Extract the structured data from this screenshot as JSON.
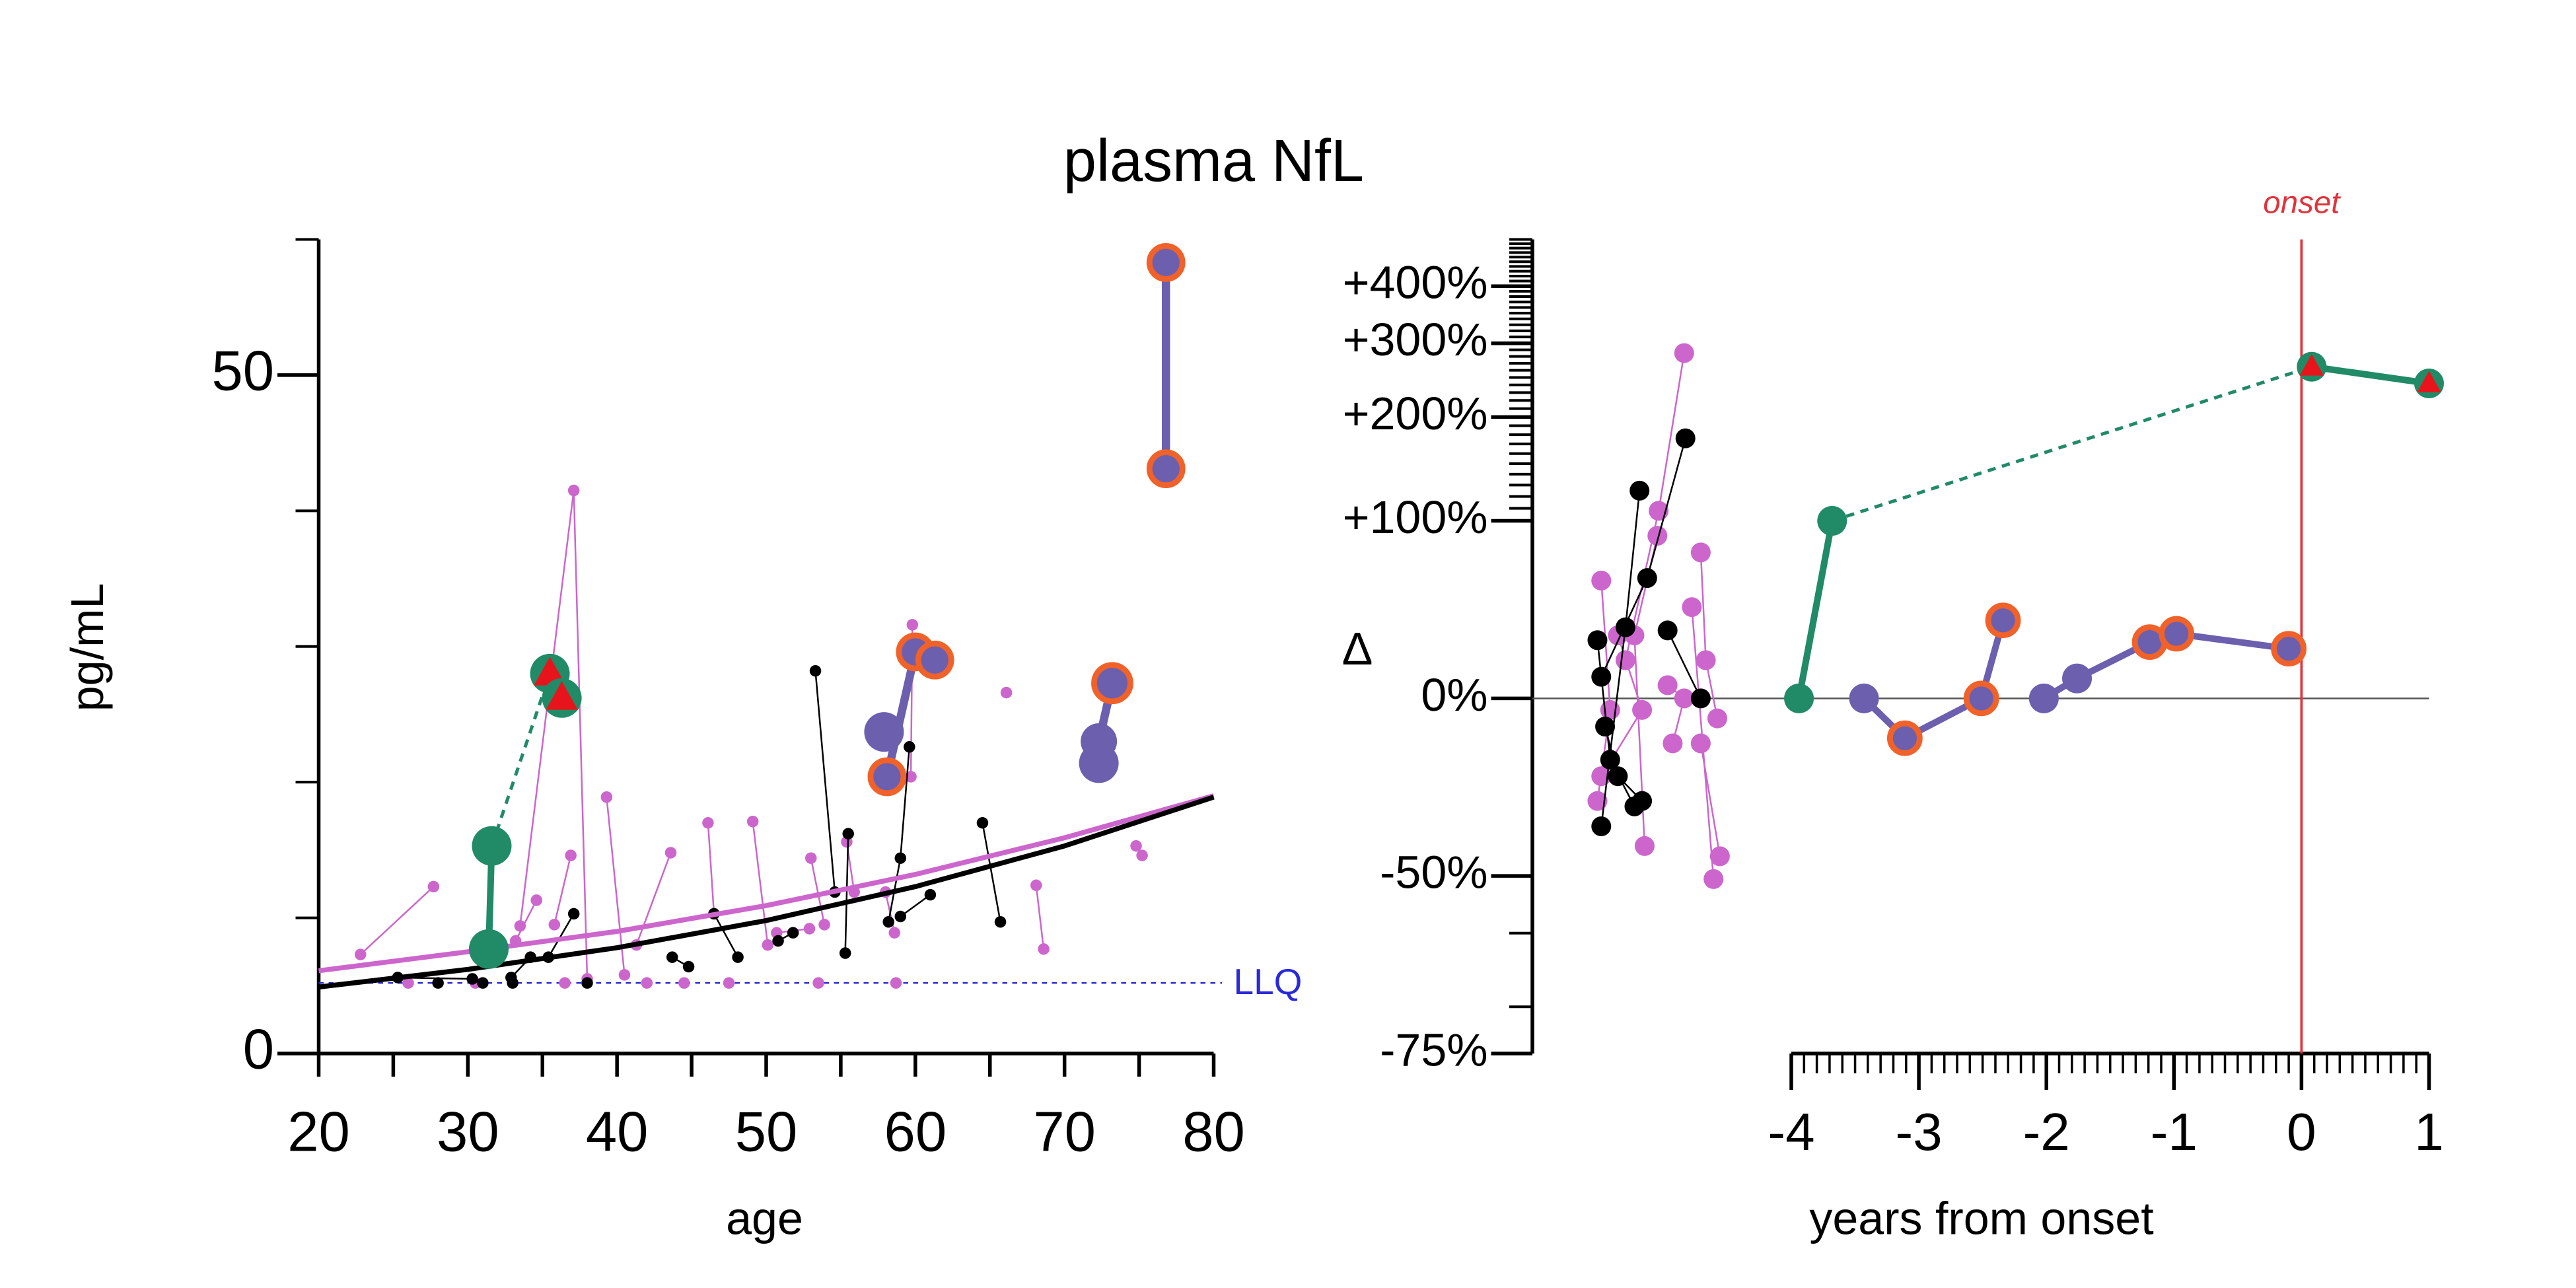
{
  "chart_data": [
    {
      "type": "line",
      "title": "plasma NfL",
      "xlabel": "age",
      "ylabel": "pg/mL",
      "xlim": [
        20,
        80
      ],
      "ylim": [
        0,
        60
      ],
      "xticks": [
        20,
        30,
        40,
        50,
        60,
        70,
        80
      ],
      "xminorticks": [
        25,
        35,
        45,
        55,
        65,
        75
      ],
      "yticks": [
        0,
        50
      ],
      "yminorticks": [
        10,
        20,
        30,
        40,
        60
      ],
      "hline": {
        "value": 5.2,
        "label": "LLQ",
        "color": "#2a2ad8"
      },
      "series": [
        {
          "color": "#cc66cc",
          "x": [
            33.5,
            37.1,
            38.0
          ],
          "values": [
            9.4,
            41.5,
            5.5
          ],
          "size": 3.5,
          "width": 1
        },
        {
          "color": "#cc66cc",
          "x": [
            22.8,
            27.7
          ],
          "values": [
            7.3,
            12.3
          ],
          "size": 3.5,
          "width": 1
        },
        {
          "color": "#cc66cc",
          "x": [
            39.3,
            40.5
          ],
          "values": [
            18.9,
            5.8
          ],
          "size": 3.5,
          "width": 1
        },
        {
          "color": "#cc66cc",
          "x": [
            43.6,
            41.3
          ],
          "values": [
            14.8,
            8.0
          ],
          "size": 3.5,
          "width": 1
        },
        {
          "color": "#cc66cc",
          "x": [
            46.1,
            46.5
          ],
          "values": [
            17.0,
            10.3
          ],
          "size": 3.5,
          "width": 1
        },
        {
          "color": "#cc66cc",
          "x": [
            49.1,
            50.1
          ],
          "values": [
            17.1,
            8.0
          ],
          "size": 3.5,
          "width": 1
        },
        {
          "color": "#cc66cc",
          "x": [
            59.8,
            59.7
          ],
          "values": [
            31.6,
            20.4
          ],
          "size": 3.5,
          "width": 1
        },
        {
          "color": "#cc66cc",
          "x": [
            66.1
          ],
          "values": [
            26.6
          ],
          "size": 3.5,
          "width": 1
        },
        {
          "color": "#cc66cc",
          "x": [
            68.1,
            68.6
          ],
          "values": [
            12.4,
            7.7
          ],
          "size": 3.5,
          "width": 1
        },
        {
          "color": "#cc66cc",
          "x": [
            74.8,
            75.2
          ],
          "values": [
            15.3,
            14.6
          ],
          "size": 3.5,
          "width": 1
        },
        {
          "color": "#cc66cc",
          "x": [
            36.9,
            35.8
          ],
          "values": [
            14.6,
            9.5
          ],
          "size": 3.5,
          "width": 1
        },
        {
          "color": "#cc66cc",
          "x": [
            34.6,
            33.2
          ],
          "values": [
            11.3,
            8.3
          ],
          "size": 3.5,
          "width": 1
        },
        {
          "color": "#cc66cc",
          "x": [
            53.0,
            53.9
          ],
          "values": [
            14.4,
            9.5
          ],
          "size": 3.5,
          "width": 1
        },
        {
          "color": "#cc66cc",
          "x": [
            55.4,
            55.9
          ],
          "values": [
            15.6,
            11.9
          ],
          "size": 3.5,
          "width": 1
        },
        {
          "color": "#cc66cc",
          "x": [
            58.0,
            58.6
          ],
          "values": [
            11.9,
            8.9
          ],
          "size": 3.5,
          "width": 1
        },
        {
          "color": "#cc66cc",
          "x": [
            50.7,
            52.9
          ],
          "values": [
            8.9,
            9.2
          ],
          "size": 3.5,
          "width": 1
        },
        {
          "color": "#cc66cc",
          "x": [
            26.0,
            30.5,
            36.5,
            42.0,
            44.5,
            47.5,
            53.5,
            58.7
          ],
          "values": [
            5.2,
            5.2,
            5.2,
            5.2,
            5.2,
            5.2,
            5.2,
            5.2
          ],
          "size": 3.5,
          "line": false
        },
        {
          "color": "#000000",
          "x": [
            53.3,
            54.6
          ],
          "values": [
            28.2,
            11.9
          ],
          "size": 3.5,
          "width": 1
        },
        {
          "color": "#000000",
          "x": [
            59.6,
            59.0,
            58.2
          ],
          "values": [
            22.6,
            14.4,
            9.7
          ],
          "size": 3.5,
          "width": 1
        },
        {
          "color": "#000000",
          "x": [
            64.5,
            65.7
          ],
          "values": [
            17.0,
            9.7
          ],
          "size": 3.5,
          "width": 1
        },
        {
          "color": "#000000",
          "x": [
            55.5,
            55.3
          ],
          "values": [
            16.2,
            7.4
          ],
          "size": 3.5,
          "width": 1
        },
        {
          "color": "#000000",
          "x": [
            46.5,
            48.1
          ],
          "values": [
            10.3,
            7.1
          ],
          "size": 3.5,
          "width": 1
        },
        {
          "color": "#000000",
          "x": [
            37.1,
            35.4
          ],
          "values": [
            10.3,
            7.1
          ],
          "size": 3.5,
          "width": 1
        },
        {
          "color": "#000000",
          "x": [
            25.3,
            30.3
          ],
          "values": [
            5.6,
            5.5
          ],
          "size": 3.5,
          "width": 1
        },
        {
          "color": "#000000",
          "x": [
            61.0,
            59.0
          ],
          "values": [
            11.7,
            10.1
          ],
          "size": 3.5,
          "width": 1
        },
        {
          "color": "#000000",
          "x": [
            50.8,
            51.8
          ],
          "values": [
            8.3,
            8.9
          ],
          "size": 3.5,
          "width": 1
        },
        {
          "color": "#000000",
          "x": [
            43.7,
            44.8
          ],
          "values": [
            7.1,
            6.4
          ],
          "size": 3.5,
          "width": 1
        },
        {
          "color": "#000000",
          "x": [
            32.9,
            34.2
          ],
          "values": [
            5.6,
            7.1
          ],
          "size": 3.5,
          "width": 1
        },
        {
          "color": "#000000",
          "x": [
            28.0,
            31.0,
            33.0,
            38.0
          ],
          "values": [
            5.2,
            5.2,
            5.2,
            5.2
          ],
          "size": 3.5,
          "line": false
        },
        {
          "color": "#cc66cc",
          "x": [
            20,
            30,
            40,
            50,
            60,
            70,
            80
          ],
          "values": [
            6.1,
            7.5,
            9.0,
            10.9,
            13.2,
            15.9,
            19.0
          ],
          "marker": "none",
          "width": 3
        },
        {
          "color": "#000000",
          "x": [
            20,
            30,
            40,
            50,
            60,
            70,
            80
          ],
          "values": [
            4.9,
            6.2,
            7.8,
            9.8,
            12.3,
            15.3,
            18.9
          ],
          "marker": "none",
          "width": 3
        },
        {
          "color": "#218a66",
          "x": [
            31.6,
            35.5
          ],
          "values": [
            15.3,
            28.0
          ],
          "marker": "none",
          "width": 2,
          "dash": true
        },
        {
          "color": "#218a66",
          "x": [
            31.4,
            31.6
          ],
          "values": [
            7.7,
            15.3
          ],
          "size": 12,
          "width": 4
        },
        {
          "color": "#218a66",
          "x": [
            35.5,
            36.3
          ],
          "values": [
            28.0,
            26.2
          ],
          "size": 12,
          "width": 4,
          "triangles": [
            true,
            true
          ],
          "triangle_color": "#e8141c"
        },
        {
          "color": "#6b5fae",
          "x": [
            57.9
          ],
          "values": [
            23.7
          ],
          "size": 12,
          "line": false
        },
        {
          "color": "#6b5fae",
          "x": [
            58.1,
            60.0,
            61.3
          ],
          "values": [
            20.4,
            29.6,
            29.0
          ],
          "size": 10,
          "width": 5,
          "outlined": [
            true,
            true,
            true
          ],
          "outline": "#f0622a"
        },
        {
          "color": "#6b5fae",
          "x": [
            72.3
          ],
          "values": [
            21.4
          ],
          "size": 12,
          "line": false
        },
        {
          "color": "#6b5fae",
          "x": [
            72.3,
            73.2
          ],
          "values": [
            23.0,
            27.3
          ],
          "size": 11,
          "width": 5,
          "outlined": [
            false,
            true
          ],
          "outline": "#f0622a"
        },
        {
          "color": "#6b5fae",
          "x": [
            76.8,
            76.8
          ],
          "values": [
            58.3,
            43.1
          ],
          "size": 10,
          "width": 5,
          "outlined": [
            true,
            true
          ],
          "outline": "#f0622a"
        }
      ]
    },
    {
      "type": "line",
      "xlabel": "years from onset",
      "ylabel": "Δ",
      "yscale": "log2-ratio",
      "xlim": [
        -6.03,
        1
      ],
      "ylim": [
        -75,
        500
      ],
      "xticks": [
        -4,
        -3,
        -2,
        -1,
        0,
        1
      ],
      "xminorticks": [
        -3.9,
        -3.8,
        -3.7,
        -3.6,
        -3.5,
        -3.4,
        -3.3,
        -3.2,
        -3.1,
        -2.9,
        -2.8,
        -2.7,
        -2.6,
        -2.5,
        -2.4,
        -2.3,
        -2.2,
        -2.1,
        -1.9,
        -1.8,
        -1.7,
        -1.6,
        -1.5,
        -1.4,
        -1.3,
        -1.2,
        -1.1,
        -0.9,
        -0.8,
        -0.7,
        -0.6,
        -0.5,
        -0.4,
        -0.3,
        -0.2,
        -0.1,
        0.1,
        0.2,
        0.3,
        0.4,
        0.5,
        0.6,
        0.7,
        0.8,
        0.9
      ],
      "yticks": [
        {
          "value": -75,
          "label": "-75%"
        },
        {
          "value": -50,
          "label": "-50%"
        },
        {
          "value": 0,
          "label": "0%"
        },
        {
          "value": 100,
          "label": "+100%"
        },
        {
          "value": 200,
          "label": "+200%"
        },
        {
          "value": 300,
          "label": "+300%"
        },
        {
          "value": 400,
          "label": "+400%"
        }
      ],
      "yminorticks": [
        -70,
        -60,
        110,
        120,
        130,
        140,
        150,
        160,
        170,
        180,
        190,
        210,
        220,
        230,
        240,
        250,
        260,
        270,
        280,
        290,
        310,
        320,
        330,
        340,
        350,
        360,
        370,
        380,
        390,
        410,
        420,
        430,
        440,
        450,
        460,
        470,
        480,
        490,
        500
      ],
      "zeroline": true,
      "vline": {
        "value": 0,
        "label": "onset",
        "color": "#e0333c"
      },
      "series": [
        {
          "color": "#cc66cc",
          "x": [
            -4.84,
            -5.04,
            -5.3
          ],
          "values": [
            285,
            108,
            16.1
          ],
          "size": 6,
          "width": 1
        },
        {
          "color": "#cc66cc",
          "x": [
            -5.49,
            -5.42,
            -5.52
          ],
          "values": [
            58.4,
            -4.4,
            -33.0
          ],
          "size": 6,
          "width": 1
        },
        {
          "color": "#cc66cc",
          "x": [
            -4.71,
            -4.67,
            -4.58
          ],
          "values": [
            76.8,
            16.1,
            -7.5
          ],
          "size": 6,
          "width": 1
        },
        {
          "color": "#cc66cc",
          "x": [
            -4.78,
            -4.61
          ],
          "values": [
            42.8,
            -50.6
          ],
          "size": 6,
          "width": 1
        },
        {
          "color": "#cc66cc",
          "x": [
            -5.05,
            -5.23,
            -5.15
          ],
          "values": [
            88.7,
            27.9,
            -43.8
          ],
          "size": 6,
          "width": 1
        },
        {
          "color": "#cc66cc",
          "x": [
            -4.97,
            -4.84,
            -4.93
          ],
          "values": [
            5.3,
            0,
            -16.1
          ],
          "size": 6,
          "width": 1
        },
        {
          "color": "#cc66cc",
          "x": [
            -5.36,
            -5.17,
            -5.49
          ],
          "values": [
            27.9,
            -4.4,
            -26.2
          ],
          "size": 6,
          "width": 1
        },
        {
          "color": "#cc66cc",
          "x": [
            -4.56,
            -4.71
          ],
          "values": [
            -46.0,
            -16.1
          ],
          "size": 6,
          "width": 1
        },
        {
          "color": "#000000",
          "x": [
            -4.83,
            -5.13,
            -5.49
          ],
          "values": [
            176,
            60,
            8.8
          ],
          "size": 6,
          "width": 1
        },
        {
          "color": "#000000",
          "x": [
            -5.19,
            -5.3,
            -5.49
          ],
          "values": [
            125,
            32,
            -39.3
          ],
          "size": 6,
          "width": 1
        },
        {
          "color": "#000000",
          "x": [
            -4.97,
            -4.71
          ],
          "values": [
            30.4,
            0
          ],
          "size": 6,
          "width": 1
        },
        {
          "color": "#000000",
          "x": [
            -5.52,
            -5.42,
            -5.23
          ],
          "values": [
            25.5,
            -21.3,
            -34.4
          ],
          "size": 6,
          "width": 1
        },
        {
          "color": "#000000",
          "x": [
            -5.46,
            -5.36,
            -5.17
          ],
          "values": [
            -10.4,
            -26.2,
            -33.0
          ],
          "size": 6,
          "width": 1
        },
        {
          "color": "#218a66",
          "x": [
            -3.68,
            0.08
          ],
          "values": [
            100,
            265
          ],
          "marker": "none",
          "width": 2,
          "dash": true
        },
        {
          "color": "#218a66",
          "x": [
            -3.94,
            -3.68
          ],
          "values": [
            0,
            100
          ],
          "size": 9,
          "width": 4
        },
        {
          "color": "#218a66",
          "x": [
            0.08,
            1.0
          ],
          "values": [
            265,
            242
          ],
          "size": 9,
          "width": 4,
          "triangles": [
            true,
            true
          ],
          "triangle_color": "#e8141c"
        },
        {
          "color": "#6b5fae",
          "x": [
            -3.43,
            -3.11,
            -2.51,
            -2.34
          ],
          "values": [
            0,
            -14.4,
            0,
            35.6
          ],
          "size": 9,
          "width": 4,
          "outlined": [
            false,
            true,
            true,
            true
          ],
          "outline": "#f0622a"
        },
        {
          "color": "#6b5fae",
          "x": [
            -2.02,
            -1.76,
            -1.19,
            -0.98,
            -0.1
          ],
          "values": [
            0,
            8.1,
            24.6,
            28.7,
            21.4
          ],
          "size": 9,
          "width": 4,
          "outlined": [
            false,
            false,
            true,
            true,
            true
          ],
          "outline": "#f0622a"
        }
      ]
    }
  ]
}
